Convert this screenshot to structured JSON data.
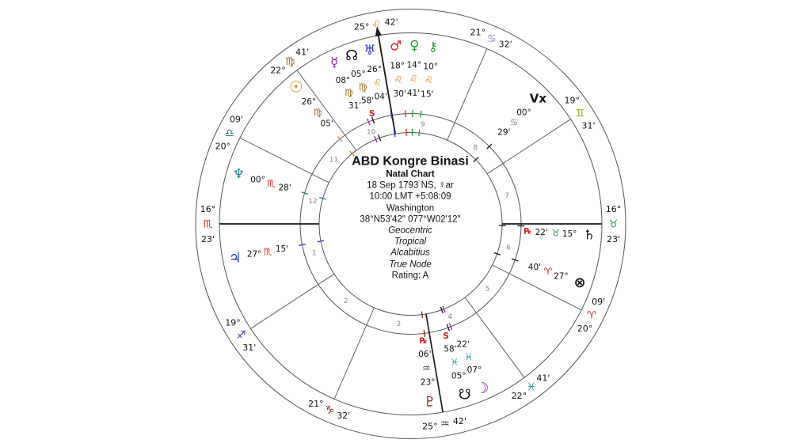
{
  "title_block": {
    "title": "ABD Kongre Binasi",
    "subtitle": "Natal Chart",
    "date": "18 Sep 1793 NS, ☿ar",
    "time": "10:00  LMT +5:08:09",
    "location": "Washington",
    "coordinates": "38°N53'42\" 077°W02'12\"",
    "centricity": "Geocentric",
    "zodiac": "Tropical",
    "house_system": "Alcabitius",
    "node_type": "True Node",
    "rating": "Rating: A"
  },
  "wheel": {
    "signs": [
      {
        "name": "aries",
        "glyph": "♈",
        "color": "#dd2e20"
      },
      {
        "name": "taurus",
        "glyph": "♉",
        "color": "#18a048"
      },
      {
        "name": "gemini",
        "glyph": "♊",
        "color": "#9ba515"
      },
      {
        "name": "cancer",
        "glyph": "♋",
        "color": "#8d8db8"
      },
      {
        "name": "leo",
        "glyph": "♌",
        "color": "#e0821e"
      },
      {
        "name": "virgo",
        "glyph": "♍",
        "color": "#a2651e"
      },
      {
        "name": "libra",
        "glyph": "♎",
        "color": "#2a7a72"
      },
      {
        "name": "scorpio",
        "glyph": "♏",
        "color": "#e03028"
      },
      {
        "name": "sagittarius",
        "glyph": "♐",
        "color": "#2a3fc4"
      },
      {
        "name": "capricorn",
        "glyph": "♑",
        "color": "#8a1a10"
      },
      {
        "name": "aquarius",
        "glyph": "♒",
        "color": "#3c3c44"
      },
      {
        "name": "pisces",
        "glyph": "♓",
        "color": "#2aa0a8"
      }
    ],
    "cusps": [
      {
        "house": "1",
        "deg": "16°",
        "sign": 7,
        "min": "23'",
        "lon": 226.383
      },
      {
        "house": "2",
        "deg": "19°",
        "sign": 8,
        "min": "31'",
        "lon": 259.517
      },
      {
        "house": "3",
        "deg": "21°",
        "sign": 9,
        "min": "32'",
        "lon": 291.533
      },
      {
        "house": "4",
        "deg": "25°",
        "sign": 10,
        "min": "42'",
        "lon": 325.7
      },
      {
        "house": "5",
        "deg": "22°",
        "sign": 11,
        "min": "41'",
        "lon": 352.683
      },
      {
        "house": "6",
        "deg": "20°",
        "sign": 0,
        "min": "09'",
        "lon": 20.15
      },
      {
        "house": "7",
        "deg": "16°",
        "sign": 1,
        "min": "23'",
        "lon": 46.383
      },
      {
        "house": "8",
        "deg": "19°",
        "sign": 2,
        "min": "31'",
        "lon": 79.517
      },
      {
        "house": "9",
        "deg": "21°",
        "sign": 3,
        "min": "32'",
        "lon": 111.533
      },
      {
        "house": "10",
        "deg": "25°",
        "sign": 4,
        "min": "42'",
        "lon": 145.7
      },
      {
        "house": "11",
        "deg": "22°",
        "sign": 5,
        "min": "41'",
        "lon": 172.683
      },
      {
        "house": "12",
        "deg": "20°",
        "sign": 6,
        "min": "09'",
        "lon": 200.15
      }
    ],
    "planets": [
      {
        "name": "sun",
        "glyph": "☉",
        "color": "#e0821e",
        "deg": "26°",
        "sign": 5,
        "min": "05'",
        "marker": "",
        "lon": 176.083,
        "size": 20
      },
      {
        "name": "mercury",
        "glyph": "☿",
        "color": "#8d18c0",
        "deg": "08°",
        "sign": 5,
        "min": "31'",
        "marker": "",
        "lon": 158.517,
        "size": 17
      },
      {
        "name": "north-node",
        "glyph": "☊",
        "color": "#141414",
        "deg": "05°",
        "sign": 5,
        "min": "58'",
        "marker": "S",
        "lon": 155.967,
        "size": 18
      },
      {
        "name": "uranus",
        "glyph": "♅",
        "color": "#2330dd",
        "deg": "26°",
        "sign": 4,
        "min": "04'",
        "marker": "",
        "lon": 146.067,
        "size": 17
      },
      {
        "name": "mars",
        "glyph": "♂",
        "color": "#e02820",
        "deg": "18°",
        "sign": 4,
        "min": "30'",
        "marker": "",
        "lon": 138.5,
        "size": 17
      },
      {
        "name": "venus",
        "glyph": "♀",
        "color": "#18a030",
        "deg": "14°",
        "sign": 4,
        "min": "41'",
        "marker": "",
        "lon": 134.683,
        "size": 17
      },
      {
        "name": "chiron",
        "glyph": "⚷",
        "color": "#18a030",
        "deg": "10°",
        "sign": 4,
        "min": "15'",
        "marker": "",
        "lon": 130.25,
        "size": 16
      },
      {
        "name": "vertex",
        "glyph": "Vx",
        "color": "#141414",
        "deg": "00°",
        "sign": 3,
        "min": "29'",
        "marker": "",
        "lon": 90.483,
        "size": 15,
        "text": true
      },
      {
        "name": "saturn",
        "glyph": "♄",
        "color": "#141414",
        "deg": "15°",
        "sign": 1,
        "min": "22'",
        "marker": "℞",
        "lon": 45.367,
        "size": 17
      },
      {
        "name": "part-of-fortune",
        "glyph": "⊗",
        "color": "#141414",
        "deg": "27°",
        "sign": 0,
        "min": "40'",
        "marker": "",
        "lon": 27.667,
        "size": 18
      },
      {
        "name": "moon",
        "glyph": "☽",
        "color": "#8820a0",
        "deg": "07°",
        "sign": 11,
        "min": "22'",
        "marker": "",
        "lon": 337.367,
        "size": 19
      },
      {
        "name": "south-node",
        "glyph": "☋",
        "color": "#141414",
        "deg": "05°",
        "sign": 11,
        "min": "58'",
        "marker": "S",
        "lon": 335.967,
        "size": 18
      },
      {
        "name": "pluto",
        "glyph": "♇",
        "color": "#8a1a10",
        "deg": "23°",
        "sign": 10,
        "min": "06'",
        "marker": "℞",
        "lon": 323.1,
        "size": 17
      },
      {
        "name": "jupiter",
        "glyph": "♃",
        "color": "#2038c0",
        "deg": "27°",
        "sign": 7,
        "min": "15'",
        "marker": "",
        "lon": 237.25,
        "size": 17
      },
      {
        "name": "neptune",
        "glyph": "♆",
        "color": "#188088",
        "deg": "00°",
        "sign": 7,
        "min": "28'",
        "marker": "",
        "lon": 210.467,
        "size": 17
      }
    ],
    "house_numbers": [
      "1",
      "2",
      "3",
      "4",
      "5",
      "6",
      "7",
      "8",
      "9",
      "10",
      "11",
      "12"
    ],
    "marker_color": "#d02020"
  }
}
